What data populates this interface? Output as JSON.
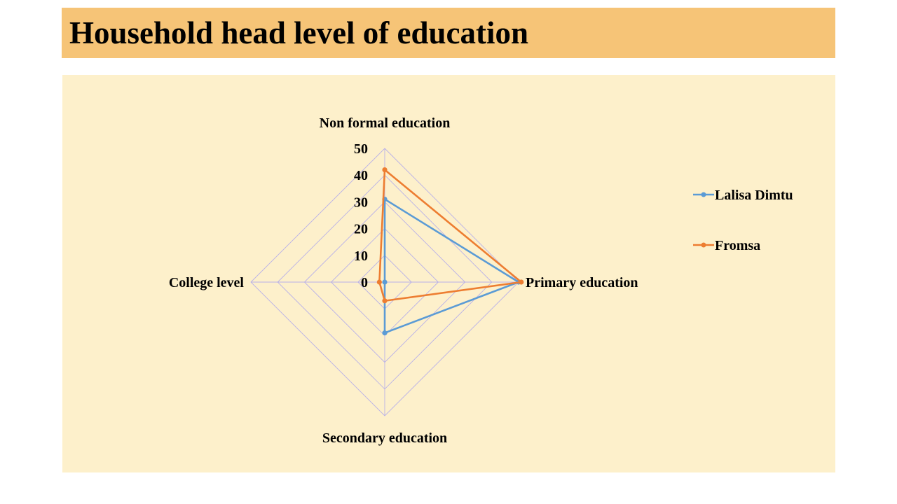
{
  "slide": {
    "title": "Household head level of education",
    "title_bg_color": "#f6c477",
    "panel_bg_color": "#fdf0cb"
  },
  "chart_data": {
    "type": "radar",
    "title": "",
    "categories": [
      "Non formal education",
      "Primary education",
      "Secondary education",
      "College level"
    ],
    "r_ticks": [
      "0",
      "10",
      "20",
      "30",
      "40",
      "50"
    ],
    "r_range": [
      0,
      50
    ],
    "grid": true,
    "grid_color": "#b8b0e8",
    "legend_position": "right",
    "series": [
      {
        "name": "Lalisa Dimtu",
        "color": "#5b9bd5",
        "values": [
          31,
          50,
          19,
          0
        ]
      },
      {
        "name": "Fromsa",
        "color": "#ed7d31",
        "values": [
          42,
          51,
          7,
          2
        ]
      }
    ]
  }
}
